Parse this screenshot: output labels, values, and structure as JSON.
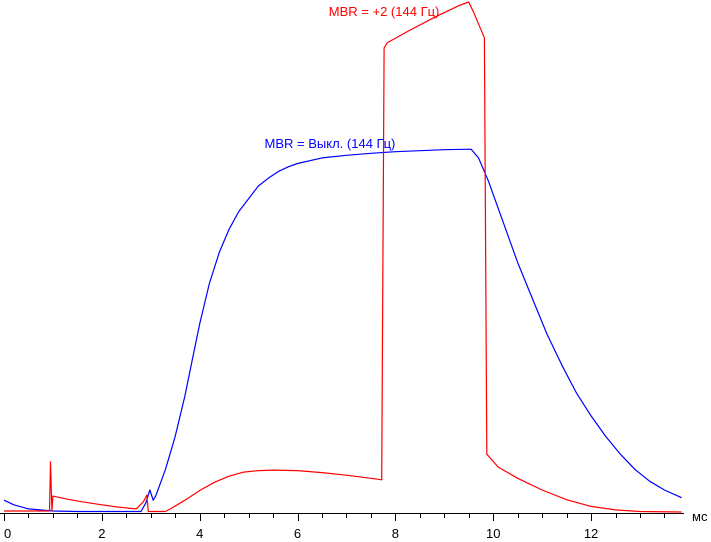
{
  "chart_data": {
    "type": "line",
    "title": "",
    "xlabel": "мс",
    "ylabel": "",
    "xlim": [
      0,
      13.9
    ],
    "ylim": [
      0,
      1
    ],
    "x_ticks": [
      0,
      2,
      4,
      6,
      8,
      10,
      12
    ],
    "x_minor_step": 0.5,
    "grid": false,
    "legend": "none",
    "series": [
      {
        "name": "MBR = Выкл. (144 Гц)",
        "color": "#0000ff",
        "points": [
          [
            0,
            0.025
          ],
          [
            0.2,
            0.016
          ],
          [
            0.5,
            0.008
          ],
          [
            1.0,
            0.004
          ],
          [
            1.5,
            0.003
          ],
          [
            2.0,
            0.003
          ],
          [
            2.5,
            0.003
          ],
          [
            2.8,
            0.003
          ],
          [
            2.9,
            0.02
          ],
          [
            2.98,
            0.045
          ],
          [
            3.05,
            0.025
          ],
          [
            3.1,
            0.033
          ],
          [
            3.3,
            0.085
          ],
          [
            3.5,
            0.15
          ],
          [
            3.7,
            0.23
          ],
          [
            3.85,
            0.3
          ],
          [
            4.0,
            0.37
          ],
          [
            4.2,
            0.45
          ],
          [
            4.4,
            0.51
          ],
          [
            4.6,
            0.555
          ],
          [
            4.8,
            0.59
          ],
          [
            5.0,
            0.615
          ],
          [
            5.2,
            0.64
          ],
          [
            5.4,
            0.655
          ],
          [
            5.6,
            0.668
          ],
          [
            5.8,
            0.677
          ],
          [
            6.0,
            0.684
          ],
          [
            6.5,
            0.695
          ],
          [
            7.0,
            0.7
          ],
          [
            7.5,
            0.704
          ],
          [
            8.0,
            0.707
          ],
          [
            8.5,
            0.709
          ],
          [
            9.0,
            0.711
          ],
          [
            9.55,
            0.712
          ],
          [
            9.7,
            0.695
          ],
          [
            9.9,
            0.65
          ],
          [
            10.2,
            0.57
          ],
          [
            10.5,
            0.49
          ],
          [
            10.8,
            0.42
          ],
          [
            11.1,
            0.35
          ],
          [
            11.4,
            0.29
          ],
          [
            11.7,
            0.235
          ],
          [
            12.0,
            0.19
          ],
          [
            12.3,
            0.15
          ],
          [
            12.6,
            0.115
          ],
          [
            12.9,
            0.085
          ],
          [
            13.2,
            0.062
          ],
          [
            13.5,
            0.045
          ],
          [
            13.85,
            0.03
          ]
        ]
      },
      {
        "name": "MBR = +2 (144 Гц)",
        "color": "#ff0000",
        "points": [
          [
            0,
            0.004
          ],
          [
            0.5,
            0.004
          ],
          [
            0.93,
            0.004
          ],
          [
            0.95,
            0.1
          ],
          [
            0.98,
            0.004
          ],
          [
            1.0,
            0.033
          ],
          [
            1.3,
            0.027
          ],
          [
            1.6,
            0.022
          ],
          [
            2.0,
            0.016
          ],
          [
            2.3,
            0.012
          ],
          [
            2.7,
            0.008
          ],
          [
            2.85,
            0.022
          ],
          [
            2.92,
            0.035
          ],
          [
            2.95,
            0.003
          ],
          [
            3.3,
            0.003
          ],
          [
            3.4,
            0.008
          ],
          [
            3.7,
            0.025
          ],
          [
            4.0,
            0.044
          ],
          [
            4.3,
            0.06
          ],
          [
            4.6,
            0.072
          ],
          [
            4.9,
            0.08
          ],
          [
            5.2,
            0.083
          ],
          [
            5.5,
            0.084
          ],
          [
            6.0,
            0.083
          ],
          [
            6.5,
            0.079
          ],
          [
            7.0,
            0.074
          ],
          [
            7.5,
            0.068
          ],
          [
            7.72,
            0.065
          ],
          [
            7.77,
            0.91
          ],
          [
            7.83,
            0.92
          ],
          [
            8.3,
            0.945
          ],
          [
            8.8,
            0.97
          ],
          [
            9.3,
            0.993
          ],
          [
            9.5,
            1.0
          ],
          [
            9.6,
            0.98
          ],
          [
            9.82,
            0.93
          ],
          [
            9.87,
            0.115
          ],
          [
            10.1,
            0.09
          ],
          [
            10.5,
            0.068
          ],
          [
            11.0,
            0.045
          ],
          [
            11.5,
            0.026
          ],
          [
            12.0,
            0.013
          ],
          [
            12.5,
            0.006
          ],
          [
            13.0,
            0.003
          ],
          [
            13.85,
            0.002
          ]
        ]
      }
    ],
    "annotations": [
      {
        "text": "MBR = +2 (144 Гц)",
        "color": "#ff0000",
        "at": [
          8.9,
          1.0
        ]
      },
      {
        "text": "MBR = Выкл. (144 Гц)",
        "color": "#0000ff",
        "at": [
          8.0,
          0.72
        ]
      }
    ]
  }
}
